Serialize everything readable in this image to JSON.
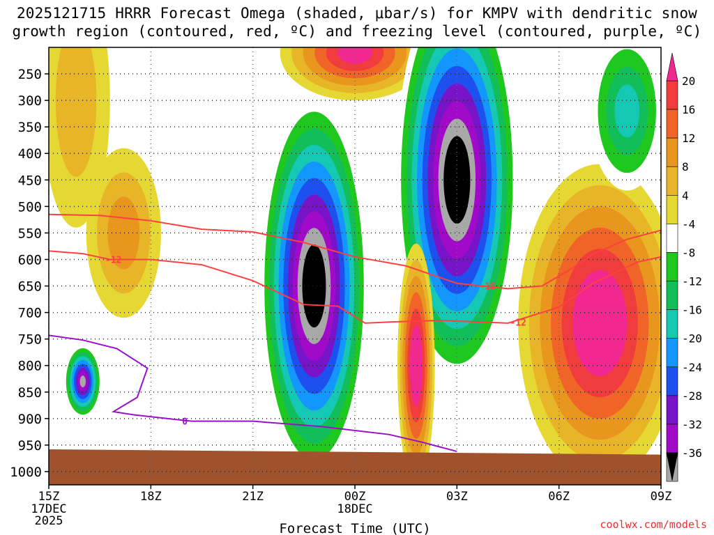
{
  "title": {
    "line1": "2025121715 HRRR Forecast Omega (shaded, μbar/s) for KMPV with dendritic snow",
    "line2": "growth region (contoured, red, ºC) and freezing level (contoured, purple, ºC)"
  },
  "credit": "coolwx.com/models",
  "chart_data": {
    "type": "heatmap",
    "title": "2025121715 HRRR Forecast Omega (shaded, μbar/s) for KMPV with dendritic snow growth region (contoured, red, ºC) and freezing level (contoured, purple, ºC)",
    "xlabel": "Forecast Time (UTC)",
    "ylabel": "",
    "x_ticks": [
      "15Z",
      "18Z",
      "21Z",
      "00Z",
      "03Z",
      "06Z",
      "09Z"
    ],
    "x_tick_hours": [
      0,
      3,
      6,
      9,
      12,
      15,
      18
    ],
    "x_sublabels": [
      {
        "hour": 0,
        "lines": [
          "17DEC",
          "2025"
        ]
      },
      {
        "hour": 9,
        "lines": [
          "18DEC"
        ]
      }
    ],
    "xlim_hours": [
      0,
      18
    ],
    "y_ticks": [
      250,
      300,
      350,
      400,
      450,
      500,
      550,
      600,
      650,
      700,
      750,
      800,
      850,
      900,
      950,
      1000
    ],
    "ylim_hPa": [
      200,
      1025
    ],
    "colorbar": {
      "label_values": [
        20,
        16,
        12,
        8,
        4,
        -4,
        -8,
        -12,
        -16,
        -20,
        -24,
        -28,
        -32,
        -36
      ],
      "bands": [
        {
          "lo": 20,
          "hi": null,
          "color": "#f02890"
        },
        {
          "lo": 16,
          "hi": 20,
          "color": "#f03c3c"
        },
        {
          "lo": 12,
          "hi": 16,
          "color": "#f06428"
        },
        {
          "lo": 8,
          "hi": 12,
          "color": "#e8961e"
        },
        {
          "lo": 4,
          "hi": 8,
          "color": "#e8b428"
        },
        {
          "lo": 0,
          "hi": 4,
          "color": "#e6d832"
        },
        {
          "lo": -4,
          "hi": 4,
          "color": "#ffffff"
        },
        {
          "lo": -8,
          "hi": -4,
          "color": "#1ec81e"
        },
        {
          "lo": -12,
          "hi": -8,
          "color": "#12be5a"
        },
        {
          "lo": -16,
          "hi": -12,
          "color": "#14c8b4"
        },
        {
          "lo": -20,
          "hi": -16,
          "color": "#1496ff"
        },
        {
          "lo": -24,
          "hi": -20,
          "color": "#1e50f0"
        },
        {
          "lo": -28,
          "hi": -24,
          "color": "#7814c8"
        },
        {
          "lo": -32,
          "hi": -28,
          "color": "#a00ac8"
        },
        {
          "lo": -36,
          "hi": -32,
          "color": "#a8a8a8"
        },
        {
          "lo": null,
          "hi": -36,
          "color": "#000000"
        }
      ]
    },
    "features": [
      {
        "name": "early-upper-sink",
        "kind": "sink",
        "center": [
          0.8,
          300
        ],
        "max": 6,
        "color_levels": [
          0,
          4,
          8,
          12,
          16
        ]
      },
      {
        "name": "pre-18z-sink",
        "kind": "sink",
        "center": [
          2.2,
          550
        ],
        "max": 8
      },
      {
        "name": "low-level-lift-cell",
        "kind": "lift",
        "center": [
          1.0,
          830
        ],
        "min": -32
      },
      {
        "name": "mid-level-lift-core-22z",
        "kind": "lift",
        "center": [
          7.8,
          650
        ],
        "min": -40
      },
      {
        "name": "upper-sink-core-23z",
        "kind": "sink",
        "center": [
          9.0,
          210
        ],
        "max": 22
      },
      {
        "name": "deep-lift-core-02z",
        "kind": "lift",
        "center": [
          12.0,
          450
        ],
        "min": -42
      },
      {
        "name": "low-level-sink-01z",
        "kind": "sink",
        "center": [
          10.8,
          800
        ],
        "max": 24
      },
      {
        "name": "post-04z-sink",
        "kind": "sink",
        "center": [
          16.2,
          720
        ],
        "max": 24
      },
      {
        "name": "upper-lift-07z",
        "kind": "lift",
        "center": [
          17.0,
          320
        ],
        "min": -14
      }
    ],
    "contours": {
      "dendritic": [
        {
          "label": "-12",
          "color": "#ff4040",
          "points": [
            [
              0,
              584
            ],
            [
              1.0,
              589
            ],
            [
              1.8,
              600
            ],
            [
              3.0,
              600
            ],
            [
              4.5,
              610
            ],
            [
              6.0,
              640
            ],
            [
              7.5,
              685
            ],
            [
              8.5,
              688
            ],
            [
              9.3,
              720
            ],
            [
              10.0,
              718
            ],
            [
              11.5,
              715
            ],
            [
              13.5,
              720
            ],
            [
              15.0,
              690
            ],
            [
              16.0,
              645
            ],
            [
              17.3,
              605
            ],
            [
              18.0,
              595
            ]
          ]
        },
        {
          "label": "-18",
          "color": "#ff4040",
          "points": [
            [
              0,
              515
            ],
            [
              1.5,
              517
            ],
            [
              3.0,
              527
            ],
            [
              4.5,
              543
            ],
            [
              6.0,
              548
            ],
            [
              7.5,
              568
            ],
            [
              9.0,
              595
            ],
            [
              10.5,
              612
            ],
            [
              12.0,
              645
            ],
            [
              13.5,
              655
            ],
            [
              14.5,
              650
            ],
            [
              15.3,
              620
            ],
            [
              16.0,
              590
            ],
            [
              17.0,
              562
            ],
            [
              18.0,
              545
            ]
          ]
        }
      ],
      "freezing": [
        {
          "label": "0",
          "color": "#9a10c8",
          "points": [
            [
              0,
              743
            ],
            [
              1.0,
              752
            ],
            [
              2.0,
              768
            ],
            [
              2.9,
              805
            ],
            [
              2.6,
              860
            ],
            [
              1.9,
              887
            ],
            [
              2.5,
              893
            ],
            [
              4.2,
              905
            ],
            [
              6.0,
              905
            ],
            [
              8.0,
              915
            ],
            [
              10.0,
              930
            ],
            [
              11.0,
              945
            ],
            [
              12.0,
              962
            ]
          ]
        }
      ]
    },
    "terrain": {
      "color": "#a0522d",
      "top_hPa_start": 958,
      "top_hPa_end": 968
    }
  }
}
